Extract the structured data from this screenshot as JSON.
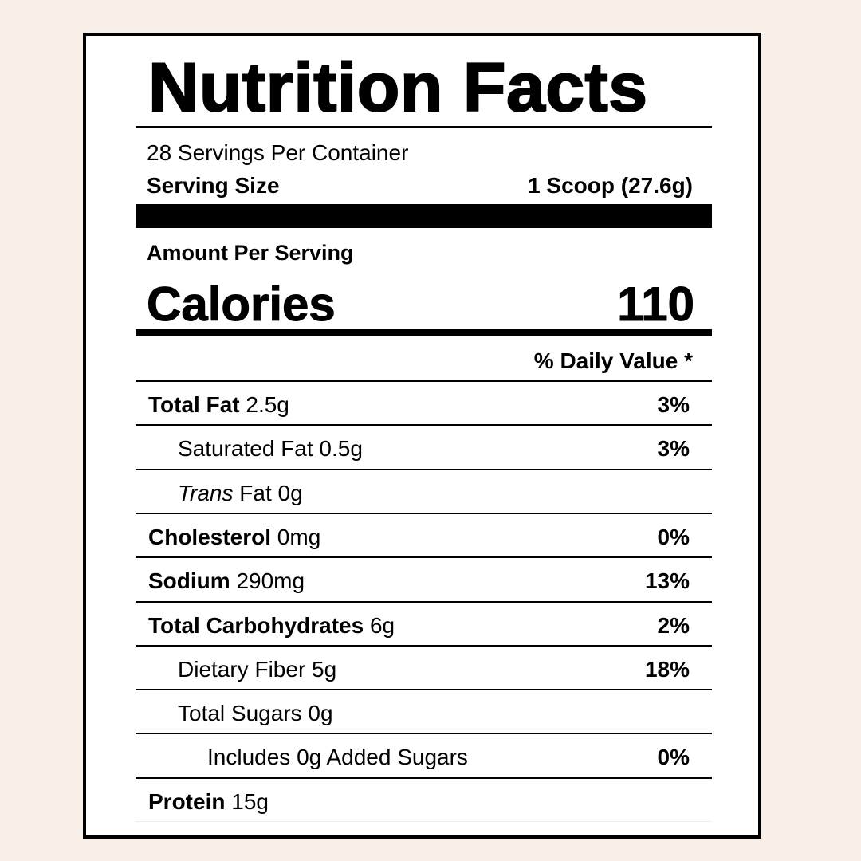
{
  "title": "Nutrition Facts",
  "servings_per_container": "28 Servings Per Container",
  "serving_size_label": "Serving Size",
  "serving_size_value": "1 Scoop (27.6g)",
  "amount_per_serving": "Amount Per Serving",
  "calories_label": "Calories",
  "calories_value": "110",
  "daily_value_header": "% Daily Value *",
  "nutrients": [
    {
      "bold": "Total Fat",
      "italic": "",
      "text": " 2.5g",
      "dv": "3%",
      "indent": 0
    },
    {
      "bold": "",
      "italic": "",
      "text": "Saturated Fat 0.5g",
      "dv": "3%",
      "indent": 1
    },
    {
      "bold": "",
      "italic": "Trans",
      "text": " Fat 0g",
      "dv": "",
      "indent": 1
    },
    {
      "bold": "Cholesterol",
      "italic": "",
      "text": " 0mg",
      "dv": "0%",
      "indent": 0
    },
    {
      "bold": "Sodium",
      "italic": "",
      "text": " 290mg",
      "dv": "13%",
      "indent": 0
    },
    {
      "bold": "Total Carbohydrates",
      "italic": "",
      "text": " 6g",
      "dv": "2%",
      "indent": 0
    },
    {
      "bold": "",
      "italic": "",
      "text": "Dietary Fiber 5g",
      "dv": "18%",
      "indent": 1
    },
    {
      "bold": "",
      "italic": "",
      "text": "Total Sugars 0g",
      "dv": "",
      "indent": 1
    },
    {
      "bold": "",
      "italic": "",
      "text": "Includes 0g Added Sugars",
      "dv": "0%",
      "indent": 2
    },
    {
      "bold": "Protein",
      "italic": "",
      "text": " 15g",
      "dv": "",
      "indent": 0
    }
  ]
}
